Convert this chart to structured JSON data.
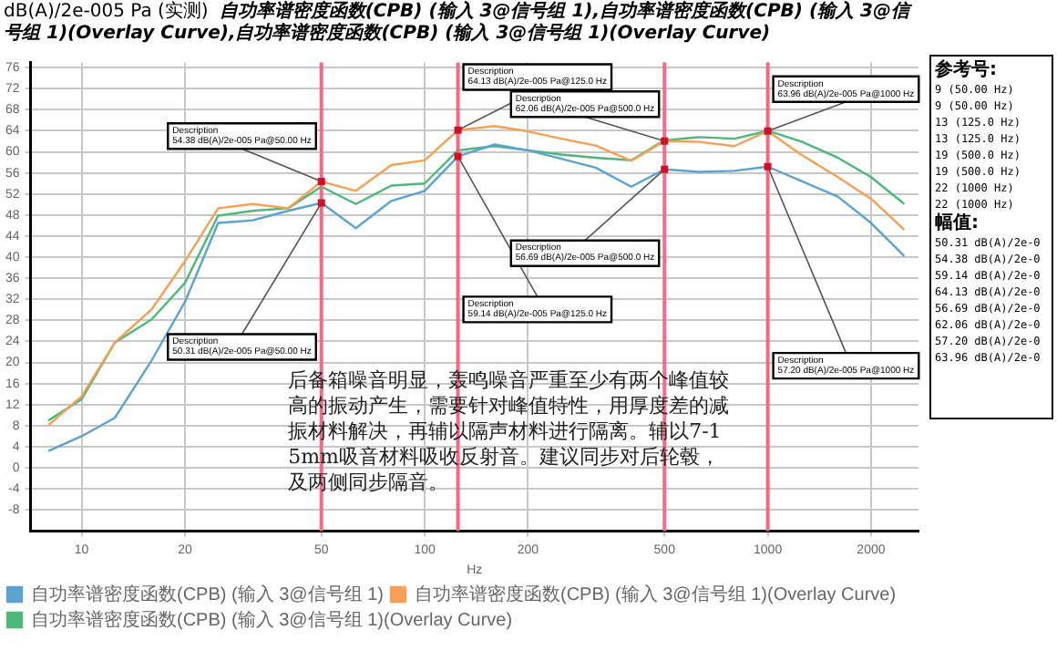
{
  "chart_data": [
    {
      "type": "line",
      "title": "自功率谱密度函数(CPB) (输入 3@信号组 1),自功率谱密度函数(CPB) (输入 3@信号组 1)(Overlay Curve),自功率谱密度函数(CPB) (输入 3@信号组 1)(Overlay Curve)",
      "ylabel": "dB(A)/2e-005 Pa (实测)",
      "xlabel": "Hz",
      "x": [
        8,
        10,
        12.5,
        16,
        20,
        25,
        31.5,
        40,
        50,
        63,
        80,
        100,
        125,
        160,
        200,
        250,
        315,
        400,
        500,
        630,
        800,
        1000,
        1250,
        1600,
        2000,
        2500
      ],
      "series": [
        {
          "name": "自功率谱密度函数(CPB) (输入 3@信号组 1)",
          "color": "#5ba3d0",
          "values": [
            3.2,
            6,
            9.5,
            20.4,
            31.5,
            46.5,
            47,
            48.8,
            50.31,
            45.5,
            50.7,
            52.6,
            59.14,
            61.4,
            60.3,
            58.7,
            57,
            53.4,
            56.69,
            56.2,
            56.4,
            57.2,
            54.5,
            51.5,
            46.5,
            40.2
          ]
        },
        {
          "name": "自功率谱密度函数(CPB) (输入 3@信号组 1)(Overlay Curve)",
          "color": "#f5a055",
          "values": [
            8.1,
            13.6,
            23.8,
            30.1,
            39.2,
            49.3,
            50.1,
            49.3,
            54.38,
            52.6,
            57.5,
            58.4,
            64.13,
            64.9,
            63.9,
            62.5,
            61.2,
            58.3,
            62.06,
            61.9,
            61.1,
            63.96,
            59.5,
            55.2,
            51.1,
            45.2
          ]
        },
        {
          "name": "自功率谱密度函数(CPB) (输入 3@信号组 1)(Overlay Curve)",
          "color": "#4cb87a",
          "values": [
            9,
            13,
            23.8,
            28.2,
            35.1,
            47.9,
            48.8,
            49.3,
            53.4,
            50.1,
            53.6,
            54,
            60.3,
            61.1,
            60.3,
            59.5,
            58.9,
            58.4,
            62.2,
            62.8,
            62.5,
            64,
            62,
            58.9,
            55.2,
            50.1
          ]
        }
      ],
      "xlim": [
        7.1,
        2750
      ],
      "xticks": [
        10,
        20,
        50,
        100,
        200,
        500,
        1000,
        2000
      ],
      "ylim": [
        -12,
        77
      ],
      "yticks": [
        -8,
        -4,
        0,
        4,
        8,
        12,
        16,
        20,
        24,
        28,
        32,
        36,
        40,
        44,
        48,
        52,
        56,
        60,
        64,
        68,
        72,
        76
      ],
      "log": "x",
      "grid": true,
      "legend": "bottom",
      "ref_lines": [
        {
          "axis": "x",
          "value": 50,
          "color": "#f56b85"
        },
        {
          "axis": "x",
          "value": 125,
          "color": "#f46a84"
        },
        {
          "axis": "x",
          "value": 500,
          "color": "#f66c86"
        },
        {
          "axis": "x",
          "value": 1000,
          "color": "#f36983"
        }
      ],
      "annotations": [
        {
          "text": "Description\n54.38 dB(A)/2e-005 Pa@50.00 Hz",
          "x": 50,
          "y": 54.38
        },
        {
          "text": "Description\n64.13 dB(A)/2e-005 Pa@125.0 Hz",
          "x": 125,
          "y": 64.13
        },
        {
          "text": "Description\n62.06 dB(A)/2e-005 Pa@500.0 Hz",
          "x": 500,
          "y": 62.06
        },
        {
          "text": "Description\n63.96 dB(A)/2e-005 Pa@1000 Hz",
          "x": 1000,
          "y": 63.96
        },
        {
          "text": "Description\n50.31 dB(A)/2e-005 Pa@50.00 Hz",
          "x": 50,
          "y": 50.31
        },
        {
          "text": "Description\n59.14 dB(A)/2e-005 Pa@125.0 Hz",
          "x": 125,
          "y": 59.14
        },
        {
          "text": "Description\n56.69 dB(A)/2e-005 Pa@500.0 Hz",
          "x": 500,
          "y": 56.69
        },
        {
          "text": "Description\n57.20 dB(A)/2e-005 Pa@1000 Hz",
          "x": 1000,
          "y": 57.2
        },
        "后备箱噪音明显，轰鸣噪音严重至少有两个峰值较高的振动产生，需要针对峰值特性，用厚度差的减振材料解决，再辅以隔声材料进行隔离。辅以7-15mm吸音材料吸收反射音。建议同步对后轮毂，及两侧同步隔音。"
      ]
    },
    {
      "type": "other",
      "annotations": [
        "参考号:",
        "9 (50.00 Hz)",
        "9 (50.00 Hz)",
        "13 (125.0 Hz)",
        "13 (125.0 Hz)",
        "19 (500.0 Hz)",
        "19 (500.0 Hz)",
        "22 (1000 Hz)",
        "22 (1000 Hz)",
        "幅值:",
        "50.31 dB(A)/2e-0",
        "54.38 dB(A)/2e-0",
        "59.14 dB(A)/2e-0",
        "64.13 dB(A)/2e-0",
        "56.69 dB(A)/2e-0",
        "62.06 dB(A)/2e-0",
        "57.20 dB(A)/2e-0",
        "63.96 dB(A)/2e-0"
      ]
    }
  ]
}
